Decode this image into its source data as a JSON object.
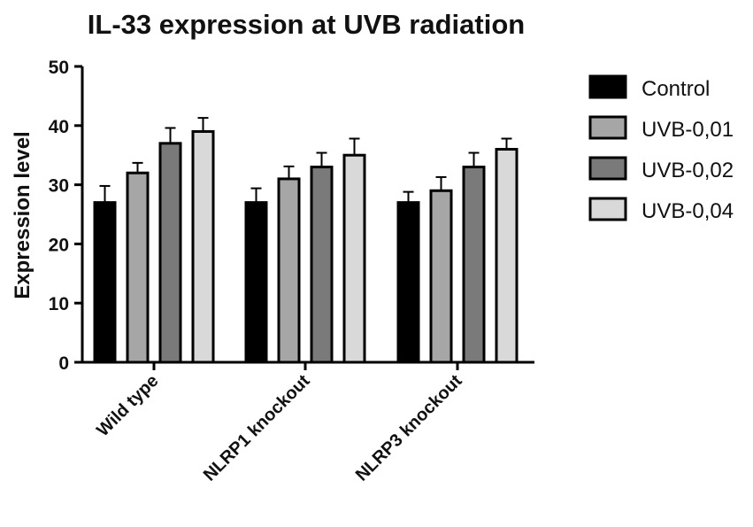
{
  "chart_data": {
    "type": "bar",
    "title": "IL-33 expression at UVB radiation",
    "xlabel": "",
    "ylabel": "Expression level",
    "ylim": [
      0,
      50
    ],
    "yticks": [
      0,
      10,
      20,
      30,
      40,
      50
    ],
    "categories": [
      "Wild type",
      "NLRP1 knockout",
      "NLRP3 knockout"
    ],
    "series": [
      {
        "name": "Control",
        "color": "#000000",
        "values": [
          27,
          27,
          27
        ],
        "errors": [
          2.8,
          2.4,
          1.8
        ]
      },
      {
        "name": "UVB-0,01",
        "color": "#a6a6a6",
        "values": [
          32,
          31,
          29
        ],
        "errors": [
          1.7,
          2.1,
          2.3
        ]
      },
      {
        "name": "UVB-0,02",
        "color": "#7a7a7a",
        "values": [
          37,
          33,
          33
        ],
        "errors": [
          2.6,
          2.4,
          2.4
        ]
      },
      {
        "name": "UVB-0,04",
        "color": "#d9d9d9",
        "values": [
          39,
          35,
          36
        ],
        "errors": [
          2.3,
          2.8,
          1.8
        ]
      }
    ],
    "error_bars": "positive",
    "grid": false,
    "legend_position": "right"
  }
}
